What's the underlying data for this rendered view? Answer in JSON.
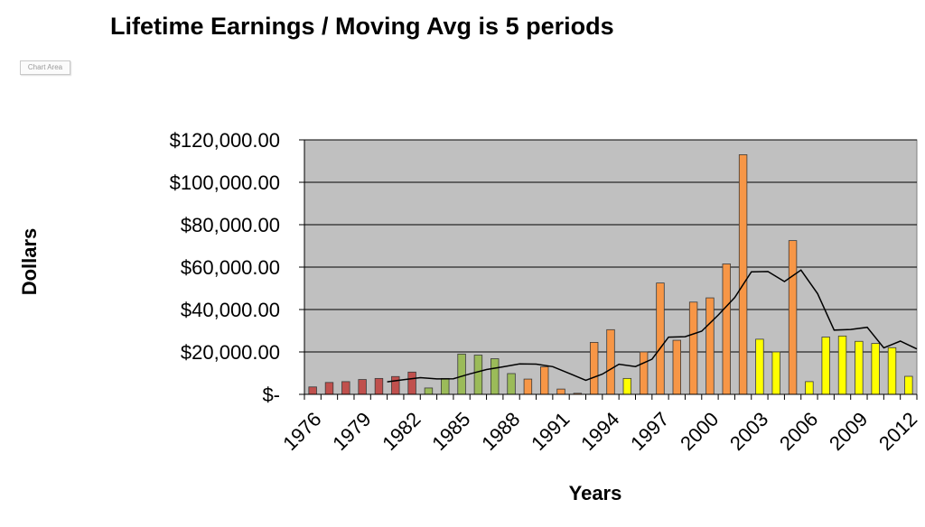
{
  "chart_data": {
    "type": "bar",
    "title": "Lifetime Earnings / Moving Avg is 5 periods",
    "xlabel": "Years",
    "ylabel": "Dollars",
    "ylim": [
      0,
      120000
    ],
    "y_ticks": [
      0,
      20000,
      40000,
      60000,
      80000,
      100000,
      120000
    ],
    "y_tick_labels": [
      "$-",
      "$20,000.00",
      "$40,000.00",
      "$60,000.00",
      "$80,000.00",
      "$100,000.00",
      "$120,000.00"
    ],
    "x_tick_labels": [
      "1976",
      "1979",
      "1982",
      "1985",
      "1988",
      "1991",
      "1994",
      "1997",
      "2000",
      "2003",
      "2006",
      "2009",
      "2012"
    ],
    "grid": true,
    "plot_background": "#c0c0c0",
    "series": [
      {
        "values": [
          3500,
          5600,
          6000,
          7000,
          7500,
          8400,
          10500,
          3000,
          7500,
          19000,
          18500,
          16800,
          9800,
          7200,
          13000,
          2500,
          500,
          24500,
          30500,
          7500,
          20000,
          52500,
          25500,
          43500,
          45500,
          61500,
          113000,
          26000,
          20000,
          72500,
          6000,
          27000,
          27500,
          25000,
          24000,
          22000,
          8500
        ],
        "colors": [
          "#c0504d",
          "#c0504d",
          "#c0504d",
          "#c0504d",
          "#c0504d",
          "#c0504d",
          "#c0504d",
          "#9bbb59",
          "#9bbb59",
          "#9bbb59",
          "#9bbb59",
          "#9bbb59",
          "#9bbb59",
          "#f79646",
          "#f79646",
          "#f79646",
          "#f79646",
          "#f79646",
          "#f79646",
          "#ffff00",
          "#f79646",
          "#f79646",
          "#f79646",
          "#f79646",
          "#f79646",
          "#f79646",
          "#f79646",
          "#ffff00",
          "#ffff00",
          "#f79646",
          "#ffff00",
          "#ffff00",
          "#ffff00",
          "#ffff00",
          "#ffff00",
          "#ffff00",
          "#ffff00"
        ]
      }
    ],
    "moving_average": {
      "period": 5,
      "color": "#000000"
    }
  },
  "chart_area_label": "Chart Area"
}
